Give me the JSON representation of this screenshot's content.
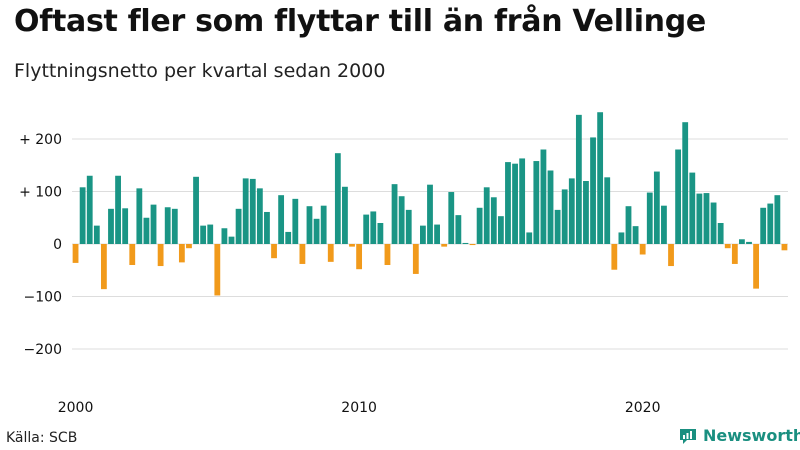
{
  "title": "Oftast fler som flyttar till än från Vellinge",
  "subtitle": "Flyttningsnetto per kvartal sedan 2000",
  "source": "Källa: SCB",
  "brand": "Newsworthy",
  "colors": {
    "positive": "#1a9585",
    "negative": "#f19a1b",
    "grid": "#dddddd",
    "brand": "#1a8f80"
  },
  "chart_data": {
    "type": "bar",
    "x_start_year": 2000,
    "frequency": "quarterly",
    "ylim": [
      -250,
      250
    ],
    "y_ticks": [
      200,
      100,
      0,
      -100,
      -200
    ],
    "y_tick_labels": [
      "+ 200",
      "+ 100",
      "0",
      "−100",
      "−200"
    ],
    "x_tick_labels": [
      "2000",
      "2010",
      "2020"
    ],
    "values": [
      -36,
      108,
      130,
      35,
      -86,
      67,
      130,
      68,
      -40,
      106,
      50,
      75,
      -42,
      70,
      67,
      -35,
      -8,
      128,
      35,
      37,
      -98,
      30,
      14,
      67,
      125,
      124,
      106,
      61,
      -27,
      93,
      23,
      86,
      -38,
      72,
      48,
      73,
      -34,
      173,
      109,
      -5,
      -48,
      56,
      62,
      40,
      -40,
      114,
      91,
      65,
      -57,
      35,
      113,
      37,
      -5,
      99,
      55,
      2,
      -2,
      69,
      108,
      89,
      53,
      156,
      153,
      163,
      22,
      158,
      180,
      140,
      65,
      104,
      125,
      246,
      120,
      203,
      251,
      127,
      -49,
      22,
      72,
      34,
      -20,
      98,
      138,
      73,
      -42,
      180,
      232,
      136,
      96,
      97,
      79,
      40,
      -8,
      -38,
      9,
      4,
      -85,
      69,
      77,
      93,
      -12
    ]
  }
}
